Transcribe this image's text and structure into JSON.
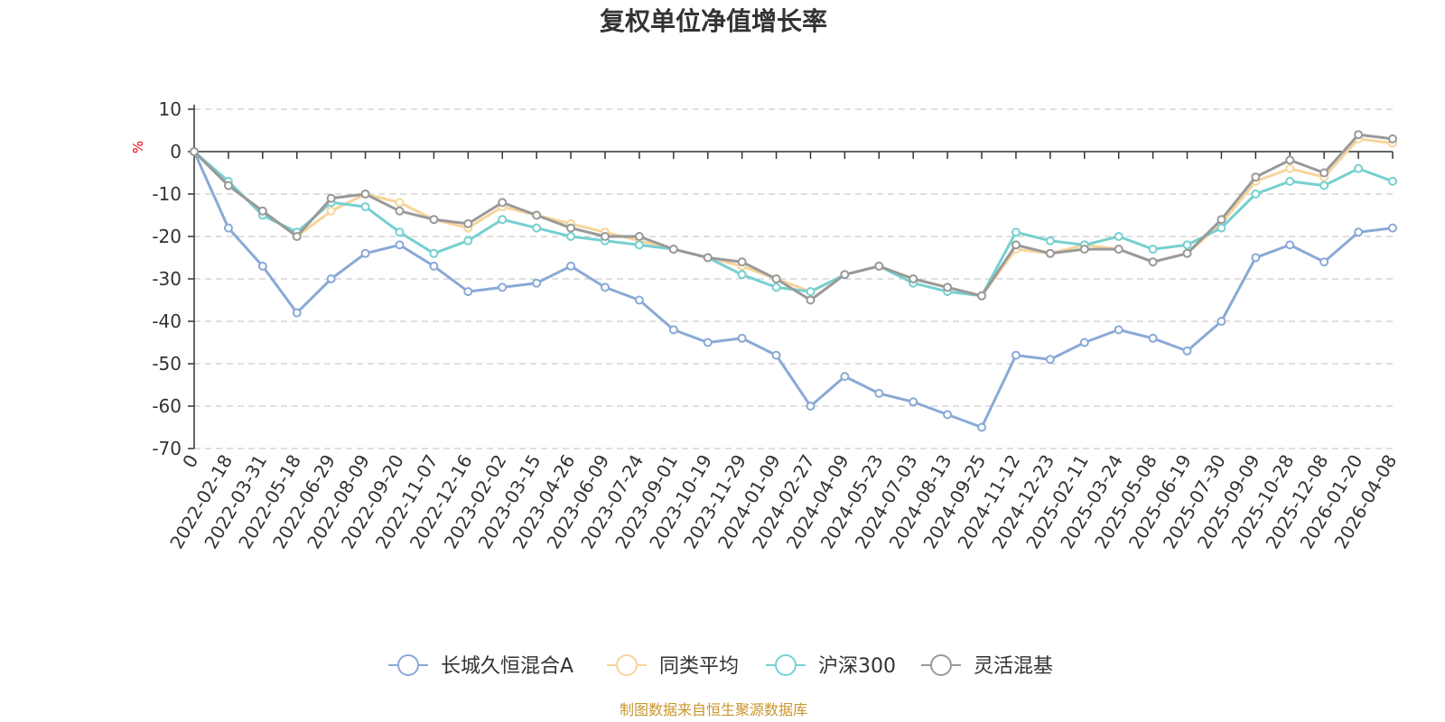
{
  "chart_data": {
    "type": "line",
    "title": "复权单位净值增长率",
    "ylabel": "%",
    "ylim": [
      -70,
      10
    ],
    "yticks": [
      10,
      0,
      -10,
      -20,
      -30,
      -40,
      -50,
      -60,
      -70
    ],
    "grid": true,
    "legend_position": "bottom",
    "x": [
      "0",
      "2022-02-18",
      "2022-03-31",
      "2022-05-18",
      "2022-06-29",
      "2022-08-09",
      "2022-09-20",
      "2022-11-07",
      "2022-12-16",
      "2023-02-02",
      "2023-03-15",
      "2023-04-26",
      "2023-06-09",
      "2023-07-24",
      "2023-09-01",
      "2023-10-19",
      "2023-11-29",
      "2024-01-09",
      "2024-02-27",
      "2024-04-09",
      "2024-05-23",
      "2024-07-03",
      "2024-08-13",
      "2024-09-25",
      "2024-11-12",
      "2024-12-23",
      "2025-02-11",
      "2025-03-24",
      "2025-05-08",
      "2025-06-19",
      "2025-07-30",
      "2025-09-09",
      "2025-10-28",
      "2025-12-08",
      "2026-01-20",
      "2026-04-08"
    ],
    "series": [
      {
        "name": "长城久恒混合A",
        "color": "#8aa9d6",
        "values": [
          0,
          -18,
          -27,
          -38,
          -30,
          -24,
          -22,
          -27,
          -33,
          -32,
          -31,
          -27,
          -32,
          -35,
          -42,
          -45,
          -44,
          -48,
          -60,
          -53,
          -57,
          -59,
          -62,
          -65,
          -48,
          -49,
          -45,
          -42,
          -44,
          -47,
          -40,
          -25,
          -22,
          -26,
          -19,
          -18
        ]
      },
      {
        "name": "同类平均",
        "color": "#f7d49b",
        "values": [
          0,
          -8,
          -14,
          -20,
          -14,
          -10,
          -12,
          -16,
          -18,
          -13,
          -15,
          -17,
          -19,
          -21,
          -23,
          -25,
          -27,
          -30,
          -33,
          -29,
          -27,
          -30,
          -32,
          -34,
          -23,
          -24,
          -22,
          -23,
          -26,
          -24,
          -17,
          -7,
          -4,
          -6,
          3,
          2
        ]
      },
      {
        "name": "沪深300",
        "color": "#76d0d0",
        "values": [
          0,
          -7,
          -15,
          -19,
          -12,
          -13,
          -19,
          -24,
          -21,
          -16,
          -18,
          -20,
          -21,
          -22,
          -23,
          -25,
          -29,
          -32,
          -33,
          -29,
          -27,
          -31,
          -33,
          -34,
          -19,
          -21,
          -22,
          -20,
          -23,
          -22,
          -18,
          -10,
          -7,
          -8,
          -4,
          -7
        ]
      },
      {
        "name": "灵活混基",
        "color": "#999999",
        "values": [
          0,
          -8,
          -14,
          -20,
          -11,
          -10,
          -14,
          -16,
          -17,
          -12,
          -15,
          -18,
          -20,
          -20,
          -23,
          -25,
          -26,
          -30,
          -35,
          -29,
          -27,
          -30,
          -32,
          -34,
          -22,
          -24,
          -23,
          -23,
          -26,
          -24,
          -16,
          -6,
          -2,
          -5,
          4,
          3
        ]
      }
    ]
  },
  "footer": {
    "source": "制图数据来自恒生聚源数据库"
  },
  "colors": {
    "axis": "#333333",
    "grid": "#cccccc",
    "unit": "#e60012",
    "source": "#c8962d"
  }
}
